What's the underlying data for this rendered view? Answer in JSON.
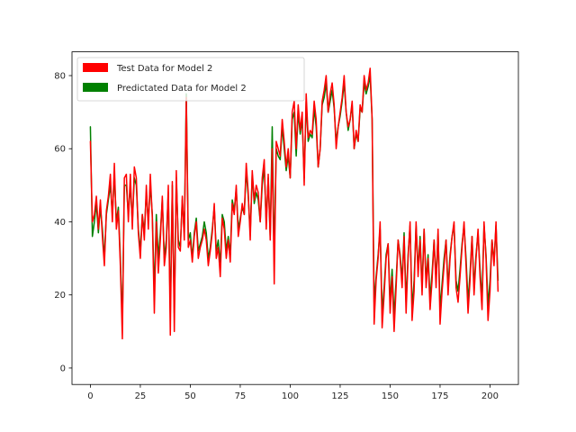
{
  "chart_data": {
    "type": "line",
    "title": "",
    "xlabel": "",
    "ylabel": "",
    "xlim": [
      -9.2,
      214.2
    ],
    "ylim": [
      -4.5,
      86.5
    ],
    "xticks": [
      0,
      25,
      50,
      75,
      100,
      125,
      150,
      175,
      200
    ],
    "yticks": [
      0,
      20,
      40,
      60,
      80
    ],
    "grid": false,
    "legend_position": "top-left",
    "series": [
      {
        "name": "Test Data for Model 2",
        "color": "#ff0000",
        "x": [
          0,
          1,
          2,
          3,
          4,
          5,
          6,
          7,
          8,
          9,
          10,
          11,
          12,
          13,
          14,
          15,
          16,
          17,
          18,
          19,
          20,
          21,
          22,
          23,
          24,
          25,
          26,
          27,
          28,
          29,
          30,
          31,
          32,
          33,
          34,
          35,
          36,
          37,
          38,
          39,
          40,
          41,
          42,
          43,
          44,
          45,
          46,
          47,
          48,
          49,
          50,
          51,
          52,
          53,
          54,
          55,
          56,
          57,
          58,
          59,
          60,
          61,
          62,
          63,
          64,
          65,
          66,
          67,
          68,
          69,
          70,
          71,
          72,
          73,
          74,
          75,
          76,
          77,
          78,
          79,
          80,
          81,
          82,
          83,
          84,
          85,
          86,
          87,
          88,
          89,
          90,
          91,
          92,
          93,
          94,
          95,
          96,
          97,
          98,
          99,
          100,
          101,
          102,
          103,
          104,
          105,
          106,
          107,
          108,
          109,
          110,
          111,
          112,
          113,
          114,
          115,
          116,
          117,
          118,
          119,
          120,
          121,
          122,
          123,
          124,
          125,
          126,
          127,
          128,
          129,
          130,
          131,
          132,
          133,
          134,
          135,
          136,
          137,
          138,
          139,
          140,
          141,
          142,
          143,
          144,
          145,
          146,
          147,
          148,
          149,
          150,
          151,
          152,
          153,
          154,
          155,
          156,
          157,
          158,
          159,
          160,
          161,
          162,
          163,
          164,
          165,
          166,
          167,
          168,
          169,
          170,
          171,
          172,
          173,
          174,
          175,
          176,
          177,
          178,
          179,
          180,
          181,
          182,
          183,
          184,
          185,
          186,
          187,
          188,
          189,
          190,
          191,
          192,
          193,
          194,
          195,
          196,
          197,
          198,
          199,
          200,
          201,
          202,
          203,
          204
        ],
        "values": [
          62,
          40,
          42,
          47,
          38,
          46,
          36,
          28,
          43,
          47,
          53,
          40,
          56,
          38,
          43,
          28,
          8,
          52,
          53,
          40,
          53,
          38,
          55,
          52,
          37,
          30,
          42,
          35,
          50,
          38,
          53,
          41,
          15,
          40,
          26,
          35,
          47,
          28,
          33,
          50,
          9,
          51,
          10,
          54,
          33,
          32,
          47,
          35,
          74,
          33,
          35,
          29,
          36,
          40,
          30,
          33,
          35,
          38,
          35,
          28,
          32,
          37,
          45,
          30,
          33,
          25,
          41,
          38,
          30,
          35,
          29,
          45,
          42,
          50,
          36,
          40,
          45,
          42,
          56,
          48,
          35,
          54,
          46,
          50,
          48,
          40,
          52,
          57,
          38,
          53,
          35,
          60,
          23,
          62,
          60,
          58,
          68,
          62,
          55,
          60,
          52,
          70,
          73,
          60,
          72,
          65,
          70,
          50,
          75,
          63,
          65,
          64,
          73,
          68,
          55,
          60,
          73,
          76,
          80,
          70,
          75,
          78,
          72,
          60,
          66,
          70,
          74,
          80,
          70,
          66,
          68,
          73,
          60,
          65,
          62,
          72,
          70,
          80,
          76,
          78,
          82,
          68,
          12,
          24,
          30,
          40,
          11,
          20,
          30,
          34,
          15,
          25,
          10,
          22,
          35,
          30,
          22,
          36,
          15,
          30,
          40,
          13,
          21,
          40,
          25,
          35,
          20,
          38,
          22,
          30,
          16,
          24,
          35,
          22,
          38,
          12,
          21,
          28,
          35,
          20,
          30,
          36,
          40,
          22,
          18,
          25,
          33,
          40,
          28,
          15,
          24,
          36,
          20,
          30,
          38,
          25,
          16,
          40,
          30,
          13,
          21,
          35,
          28,
          40,
          21
        ]
      },
      {
        "name": "Predictated Data for Model 2",
        "color": "#008000",
        "x": [
          0,
          1,
          2,
          3,
          4,
          5,
          6,
          7,
          8,
          9,
          10,
          11,
          12,
          13,
          14,
          15,
          16,
          17,
          18,
          19,
          20,
          21,
          22,
          23,
          24,
          25,
          26,
          27,
          28,
          29,
          30,
          31,
          32,
          33,
          34,
          35,
          36,
          37,
          38,
          39,
          40,
          41,
          42,
          43,
          44,
          45,
          46,
          47,
          48,
          49,
          50,
          51,
          52,
          53,
          54,
          55,
          56,
          57,
          58,
          59,
          60,
          61,
          62,
          63,
          64,
          65,
          66,
          67,
          68,
          69,
          70,
          71,
          72,
          73,
          74,
          75,
          76,
          77,
          78,
          79,
          80,
          81,
          82,
          83,
          84,
          85,
          86,
          87,
          88,
          89,
          90,
          91,
          92,
          93,
          94,
          95,
          96,
          97,
          98,
          99,
          100,
          101,
          102,
          103,
          104,
          105,
          106,
          107,
          108,
          109,
          110,
          111,
          112,
          113,
          114,
          115,
          116,
          117,
          118,
          119,
          120,
          121,
          122,
          123,
          124,
          125,
          126,
          127,
          128,
          129,
          130,
          131,
          132,
          133,
          134,
          135,
          136,
          137,
          138,
          139,
          140,
          141,
          142,
          143,
          144,
          145,
          146,
          147,
          148,
          149,
          150,
          151,
          152,
          153,
          154,
          155,
          156,
          157,
          158,
          159,
          160,
          161,
          162,
          163,
          164,
          165,
          166,
          167,
          168,
          169,
          170,
          171,
          172,
          173,
          174,
          175,
          176,
          177,
          178,
          179,
          180,
          181,
          182,
          183,
          184,
          185,
          186,
          187,
          188,
          189,
          190,
          191,
          192,
          193,
          194,
          195,
          196,
          197,
          198,
          199,
          200,
          201,
          202,
          203,
          204
        ],
        "values": [
          66,
          36,
          40,
          45,
          37,
          44,
          38,
          30,
          42,
          46,
          50,
          42,
          53,
          40,
          44,
          30,
          12,
          50,
          50,
          42,
          50,
          40,
          52,
          50,
          38,
          32,
          42,
          37,
          48,
          40,
          50,
          42,
          20,
          42,
          30,
          37,
          46,
          30,
          35,
          48,
          15,
          50,
          15,
          52,
          35,
          33,
          46,
          37,
          75,
          35,
          37,
          30,
          37,
          41,
          32,
          34,
          36,
          40,
          37,
          30,
          33,
          38,
          44,
          32,
          35,
          28,
          42,
          40,
          32,
          36,
          31,
          46,
          43,
          49,
          38,
          41,
          44,
          42,
          54,
          47,
          37,
          53,
          45,
          48,
          46,
          40,
          50,
          55,
          40,
          52,
          36,
          66,
          30,
          60,
          58,
          57,
          66,
          60,
          54,
          58,
          52,
          68,
          70,
          58,
          70,
          64,
          68,
          52,
          73,
          62,
          64,
          63,
          71,
          66,
          55,
          60,
          72,
          74,
          78,
          70,
          73,
          76,
          71,
          62,
          66,
          69,
          73,
          78,
          70,
          65,
          68,
          72,
          60,
          64,
          62,
          71,
          70,
          78,
          75,
          77,
          80,
          68,
          18,
          25,
          31,
          38,
          15,
          22,
          31,
          34,
          18,
          27,
          14,
          24,
          35,
          31,
          24,
          37,
          18,
          31,
          39,
          16,
          24,
          39,
          27,
          36,
          22,
          38,
          24,
          31,
          19,
          26,
          35,
          24,
          37,
          16,
          23,
          30,
          35,
          22,
          31,
          36,
          39,
          24,
          21,
          27,
          34,
          39,
          30,
          18,
          26,
          36,
          22,
          31,
          37,
          27,
          19,
          39,
          31,
          17,
          24,
          35,
          29,
          39,
          24
        ]
      }
    ]
  }
}
